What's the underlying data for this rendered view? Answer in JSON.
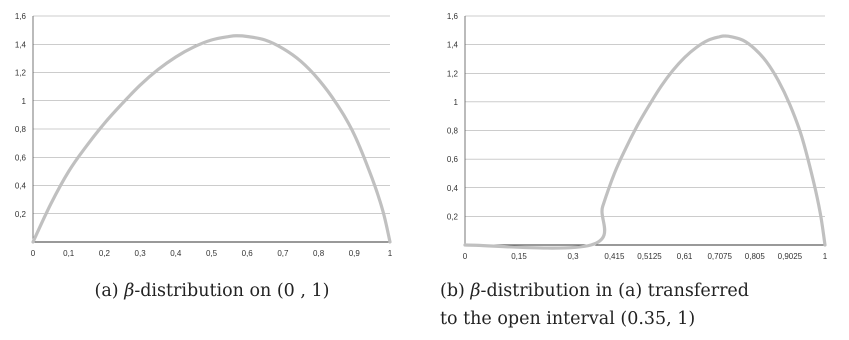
{
  "chart_data": [
    {
      "type": "line",
      "caption_prefix": "(a) ",
      "caption_beta": "β",
      "caption_rest": "-distribution on (0 , 1)",
      "caption_line2": "",
      "x_ticks": [
        "0",
        "0,1",
        "0,2",
        "0,3",
        "0,4",
        "0,5",
        "0,6",
        "0,7",
        "0,8",
        "0,9",
        "1"
      ],
      "y_ticks": [
        "0,2",
        "0,4",
        "0,6",
        "0,8",
        "1",
        "1,2",
        "1,4",
        "1,6"
      ],
      "ylim": [
        0,
        1.6
      ],
      "grid": true,
      "series": [
        {
          "color": "#c0c0c0",
          "x": [
            0,
            0.05,
            0.1,
            0.15,
            0.2,
            0.25,
            0.3,
            0.35,
            0.4,
            0.45,
            0.5,
            0.55,
            0.57,
            0.6,
            0.65,
            0.7,
            0.75,
            0.8,
            0.85,
            0.9,
            0.95,
            0.98,
            1
          ],
          "y": [
            0,
            0.27,
            0.5,
            0.68,
            0.84,
            0.98,
            1.11,
            1.22,
            1.31,
            1.38,
            1.43,
            1.455,
            1.46,
            1.455,
            1.43,
            1.37,
            1.28,
            1.15,
            0.98,
            0.76,
            0.45,
            0.22,
            0
          ]
        }
      ]
    },
    {
      "type": "line",
      "caption_prefix": "(b) ",
      "caption_beta": "β",
      "caption_rest": "-distribution in (a) transferred",
      "caption_line2": "to the open interval (0.35, 1)",
      "x_ticks": [
        "0",
        "0,15",
        "0,3",
        "0,415",
        "0,5125",
        "0,61",
        "0,7075",
        "0,805",
        "0,9025",
        "1"
      ],
      "y_ticks": [
        "0,2",
        "0,4",
        "0,6",
        "0,8",
        "1",
        "1,2",
        "1,4",
        "1,6"
      ],
      "ylim": [
        0,
        1.6
      ],
      "grid": true,
      "series": [
        {
          "color": "#c0c0c0",
          "x": [
            0,
            0.35,
            0.3825,
            0.415,
            0.4475,
            0.48,
            0.5125,
            0.545,
            0.5775,
            0.61,
            0.6425,
            0.675,
            0.7075,
            0.7205,
            0.74,
            0.7725,
            0.805,
            0.8375,
            0.87,
            0.9025,
            0.935,
            0.9675,
            0.987,
            1
          ],
          "y": [
            0,
            0,
            0.27,
            0.5,
            0.68,
            0.84,
            0.98,
            1.11,
            1.22,
            1.31,
            1.38,
            1.43,
            1.455,
            1.46,
            1.455,
            1.43,
            1.37,
            1.28,
            1.15,
            0.98,
            0.76,
            0.45,
            0.22,
            0
          ]
        }
      ]
    }
  ]
}
